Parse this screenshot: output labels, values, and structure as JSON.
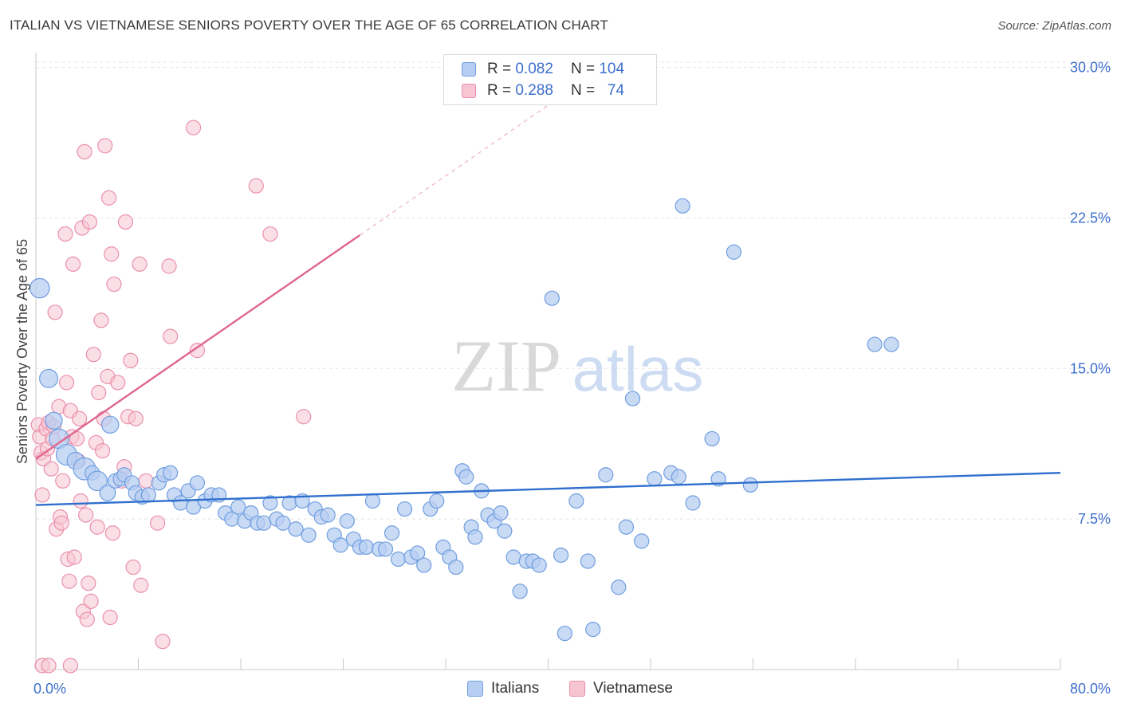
{
  "title": "ITALIAN VS VIETNAMESE SENIORS POVERTY OVER THE AGE OF 65 CORRELATION CHART",
  "source": "Source: ZipAtlas.com",
  "watermark": {
    "zip": "ZIP",
    "atlas": "atlas"
  },
  "stats": {
    "italians": {
      "r_label": "R =",
      "r_value": "0.082",
      "n_label": "N =",
      "n_value": "104"
    },
    "vietnamese": {
      "r_label": "R =",
      "r_value": "0.288",
      "n_label": "N =",
      "n_value": "74"
    }
  },
  "colors": {
    "italians_fill": "#b7cef2",
    "italians_stroke": "#6f9ee0",
    "italians_line": "#2f6fce",
    "vietnamese_fill": "#f7c4d3",
    "vietnamese_stroke": "#ea8fab",
    "vietnamese_line": "#e0658f",
    "tick_label": "#3d6fcc",
    "grid": "#e4e4e4"
  },
  "chart_data": {
    "type": "scatter",
    "title": "ITALIAN VS VIETNAMESE SENIORS POVERTY OVER THE AGE OF 65 CORRELATION CHART",
    "xlabel": "",
    "ylabel": "Seniors Poverty Over the Age of 65",
    "xlim": [
      0,
      80
    ],
    "ylim": [
      0,
      30.5
    ],
    "y_ticks": [
      7.5,
      15.0,
      22.5,
      30.0
    ],
    "y_tick_labels": [
      "7.5%",
      "15.0%",
      "22.5%",
      "30.0%"
    ],
    "x_tick_labels": {
      "min": "0.0%",
      "max": "80.0%"
    },
    "grid": true,
    "legend": "bottom-center",
    "series": [
      {
        "name": "Italians",
        "r": 0.082,
        "n": 104,
        "trend": {
          "x": [
            0,
            80
          ],
          "y": [
            8.2,
            9.8
          ],
          "solid_until": 80
        },
        "points": [
          [
            0.3,
            19.0,
            14
          ],
          [
            1.0,
            14.5,
            13
          ],
          [
            1.4,
            12.4,
            12
          ],
          [
            1.8,
            11.5,
            14
          ],
          [
            2.4,
            10.7,
            15
          ],
          [
            3.1,
            10.4,
            12
          ],
          [
            3.8,
            10.0,
            16
          ],
          [
            4.4,
            9.8,
            10
          ],
          [
            4.8,
            9.4,
            14
          ],
          [
            5.6,
            8.8,
            11
          ],
          [
            5.8,
            12.2,
            12
          ],
          [
            6.2,
            9.4,
            10
          ],
          [
            6.6,
            9.5,
            10
          ],
          [
            6.9,
            9.7,
            10
          ],
          [
            7.5,
            9.3,
            10
          ],
          [
            7.8,
            8.8,
            10
          ],
          [
            8.3,
            8.6,
            10
          ],
          [
            8.8,
            8.7,
            10
          ],
          [
            9.6,
            9.3,
            10
          ],
          [
            10.0,
            9.7,
            10
          ],
          [
            10.5,
            9.8,
            10
          ],
          [
            10.8,
            8.7,
            10
          ],
          [
            11.3,
            8.3,
            10
          ],
          [
            11.9,
            8.9,
            10
          ],
          [
            12.3,
            8.1,
            10
          ],
          [
            12.6,
            9.3,
            10
          ],
          [
            13.2,
            8.4,
            10
          ],
          [
            13.7,
            8.7,
            10
          ],
          [
            14.3,
            8.7,
            10
          ],
          [
            14.8,
            7.8,
            10
          ],
          [
            15.3,
            7.5,
            10
          ],
          [
            15.8,
            8.1,
            10
          ],
          [
            16.3,
            7.4,
            10
          ],
          [
            16.8,
            7.8,
            10
          ],
          [
            17.3,
            7.3,
            10
          ],
          [
            17.8,
            7.3,
            10
          ],
          [
            18.3,
            8.3,
            10
          ],
          [
            18.8,
            7.5,
            10
          ],
          [
            19.3,
            7.3,
            10
          ],
          [
            19.8,
            8.3,
            10
          ],
          [
            20.3,
            7.0,
            10
          ],
          [
            20.8,
            8.4,
            10
          ],
          [
            21.3,
            6.7,
            10
          ],
          [
            21.8,
            8.0,
            10
          ],
          [
            22.3,
            7.6,
            10
          ],
          [
            22.8,
            7.7,
            10
          ],
          [
            23.3,
            6.7,
            10
          ],
          [
            23.8,
            6.2,
            10
          ],
          [
            24.3,
            7.4,
            10
          ],
          [
            24.8,
            6.5,
            10
          ],
          [
            25.3,
            6.1,
            10
          ],
          [
            25.8,
            6.1,
            10
          ],
          [
            26.3,
            8.4,
            10
          ],
          [
            26.8,
            6.0,
            10
          ],
          [
            27.3,
            6.0,
            10
          ],
          [
            27.8,
            6.8,
            10
          ],
          [
            28.3,
            5.5,
            10
          ],
          [
            28.8,
            8.0,
            10
          ],
          [
            29.3,
            5.6,
            10
          ],
          [
            29.8,
            5.8,
            10
          ],
          [
            30.3,
            5.2,
            10
          ],
          [
            30.8,
            8.0,
            10
          ],
          [
            31.3,
            8.4,
            10
          ],
          [
            31.8,
            6.1,
            10
          ],
          [
            32.3,
            5.6,
            10
          ],
          [
            32.8,
            5.1,
            10
          ],
          [
            33.3,
            9.9,
            10
          ],
          [
            33.6,
            9.6,
            10
          ],
          [
            34.0,
            7.1,
            10
          ],
          [
            34.3,
            6.6,
            10
          ],
          [
            34.8,
            8.9,
            10
          ],
          [
            35.3,
            7.7,
            10
          ],
          [
            35.8,
            7.4,
            10
          ],
          [
            36.3,
            7.8,
            10
          ],
          [
            36.6,
            6.9,
            10
          ],
          [
            37.3,
            5.6,
            10
          ],
          [
            37.8,
            3.9,
            10
          ],
          [
            38.3,
            5.4,
            10
          ],
          [
            38.8,
            5.4,
            10
          ],
          [
            39.3,
            5.2,
            10
          ],
          [
            40.3,
            18.5,
            10
          ],
          [
            41.0,
            5.7,
            10
          ],
          [
            41.3,
            1.8,
            10
          ],
          [
            42.2,
            8.4,
            10
          ],
          [
            43.1,
            5.4,
            10
          ],
          [
            43.5,
            2.0,
            10
          ],
          [
            44.5,
            9.7,
            10
          ],
          [
            45.5,
            4.1,
            10
          ],
          [
            46.1,
            7.1,
            10
          ],
          [
            46.6,
            13.5,
            10
          ],
          [
            47.3,
            6.4,
            10
          ],
          [
            48.3,
            9.5,
            10
          ],
          [
            49.6,
            9.8,
            10
          ],
          [
            50.2,
            9.6,
            10
          ],
          [
            50.5,
            23.1,
            10
          ],
          [
            51.3,
            8.3,
            10
          ],
          [
            52.8,
            11.5,
            10
          ],
          [
            53.3,
            9.5,
            10
          ],
          [
            54.5,
            20.8,
            10
          ],
          [
            55.8,
            9.2,
            10
          ],
          [
            65.5,
            16.2,
            10
          ],
          [
            66.8,
            16.2,
            10
          ]
        ]
      },
      {
        "name": "Vietnamese",
        "r": 0.288,
        "n": 74,
        "trend": {
          "x": [
            0,
            42
          ],
          "y": [
            10.5,
            29.0
          ],
          "solid_until": 25.3
        },
        "points": [
          [
            0.2,
            12.2,
            10
          ],
          [
            0.3,
            11.6,
            10
          ],
          [
            0.4,
            10.8,
            10
          ],
          [
            0.5,
            8.7,
            10
          ],
          [
            0.6,
            10.5,
            10
          ],
          [
            0.8,
            12.0,
            10
          ],
          [
            0.9,
            11.0,
            10
          ],
          [
            1.0,
            12.3,
            10
          ],
          [
            1.2,
            10.0,
            10
          ],
          [
            1.3,
            11.5,
            10
          ],
          [
            1.4,
            12.1,
            10
          ],
          [
            1.5,
            17.8,
            10
          ],
          [
            1.6,
            7.0,
            10
          ],
          [
            1.8,
            13.1,
            10
          ],
          [
            1.9,
            7.6,
            10
          ],
          [
            2.0,
            7.3,
            10
          ],
          [
            2.1,
            9.4,
            10
          ],
          [
            2.3,
            21.7,
            10
          ],
          [
            2.4,
            14.3,
            10
          ],
          [
            2.5,
            5.5,
            10
          ],
          [
            2.6,
            4.4,
            10
          ],
          [
            2.7,
            12.9,
            10
          ],
          [
            2.8,
            11.6,
            10
          ],
          [
            2.9,
            20.2,
            10
          ],
          [
            3.0,
            5.6,
            10
          ],
          [
            3.2,
            11.5,
            10
          ],
          [
            3.3,
            10.4,
            10
          ],
          [
            3.4,
            12.5,
            10
          ],
          [
            3.5,
            8.4,
            10
          ],
          [
            3.6,
            22.0,
            10
          ],
          [
            3.7,
            2.9,
            10
          ],
          [
            3.8,
            25.8,
            10
          ],
          [
            3.9,
            7.7,
            10
          ],
          [
            4.0,
            2.5,
            10
          ],
          [
            4.1,
            4.3,
            10
          ],
          [
            4.2,
            22.3,
            10
          ],
          [
            4.3,
            3.4,
            10
          ],
          [
            4.5,
            15.7,
            10
          ],
          [
            4.7,
            11.3,
            10
          ],
          [
            4.8,
            7.1,
            10
          ],
          [
            4.9,
            13.8,
            10
          ],
          [
            5.1,
            17.4,
            10
          ],
          [
            5.2,
            10.9,
            10
          ],
          [
            5.3,
            12.5,
            10
          ],
          [
            5.4,
            26.1,
            10
          ],
          [
            5.6,
            14.6,
            10
          ],
          [
            5.7,
            23.5,
            10
          ],
          [
            5.8,
            2.6,
            10
          ],
          [
            5.9,
            20.7,
            10
          ],
          [
            6.0,
            6.8,
            10
          ],
          [
            6.1,
            19.2,
            10
          ],
          [
            6.4,
            14.3,
            10
          ],
          [
            6.7,
            9.4,
            10
          ],
          [
            6.9,
            10.1,
            10
          ],
          [
            7.0,
            22.3,
            10
          ],
          [
            7.2,
            12.6,
            10
          ],
          [
            7.4,
            15.4,
            10
          ],
          [
            7.6,
            5.1,
            10
          ],
          [
            7.8,
            12.5,
            10
          ],
          [
            8.1,
            20.2,
            10
          ],
          [
            8.6,
            9.4,
            10
          ],
          [
            9.5,
            7.3,
            10
          ],
          [
            8.2,
            4.2,
            10
          ],
          [
            9.9,
            1.4,
            10
          ],
          [
            10.4,
            20.1,
            10
          ],
          [
            10.5,
            16.6,
            10
          ],
          [
            12.3,
            27.0,
            10
          ],
          [
            12.6,
            15.9,
            10
          ],
          [
            17.2,
            24.1,
            10
          ],
          [
            18.3,
            21.7,
            10
          ],
          [
            20.9,
            12.6,
            10
          ],
          [
            0.5,
            0.2,
            10
          ],
          [
            1.0,
            0.2,
            10
          ],
          [
            2.7,
            0.2,
            10
          ]
        ]
      }
    ]
  }
}
